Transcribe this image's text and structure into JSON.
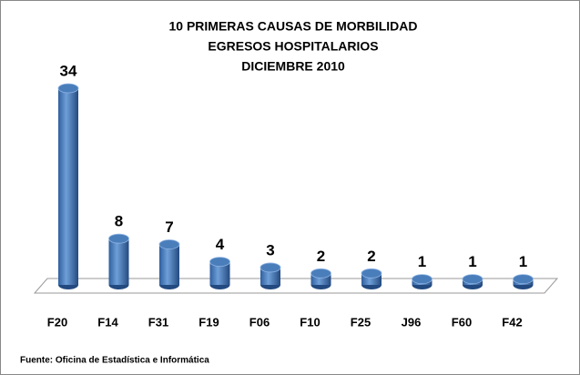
{
  "chart_data": {
    "type": "bar",
    "title": [
      "10 PRIMERAS CAUSAS DE MORBILIDAD",
      "EGRESOS HOSPITALARIOS",
      "DICIEMBRE 2010"
    ],
    "categories": [
      "F20",
      "F14",
      "F31",
      "F19",
      "F06",
      "F10",
      "F25",
      "J96",
      "F60",
      "F42"
    ],
    "values": [
      34,
      8,
      7,
      4,
      3,
      2,
      2,
      1,
      1,
      1
    ],
    "color": "#4a7ebb",
    "source": "Fuente: Oficina de Estadística e Informática"
  }
}
